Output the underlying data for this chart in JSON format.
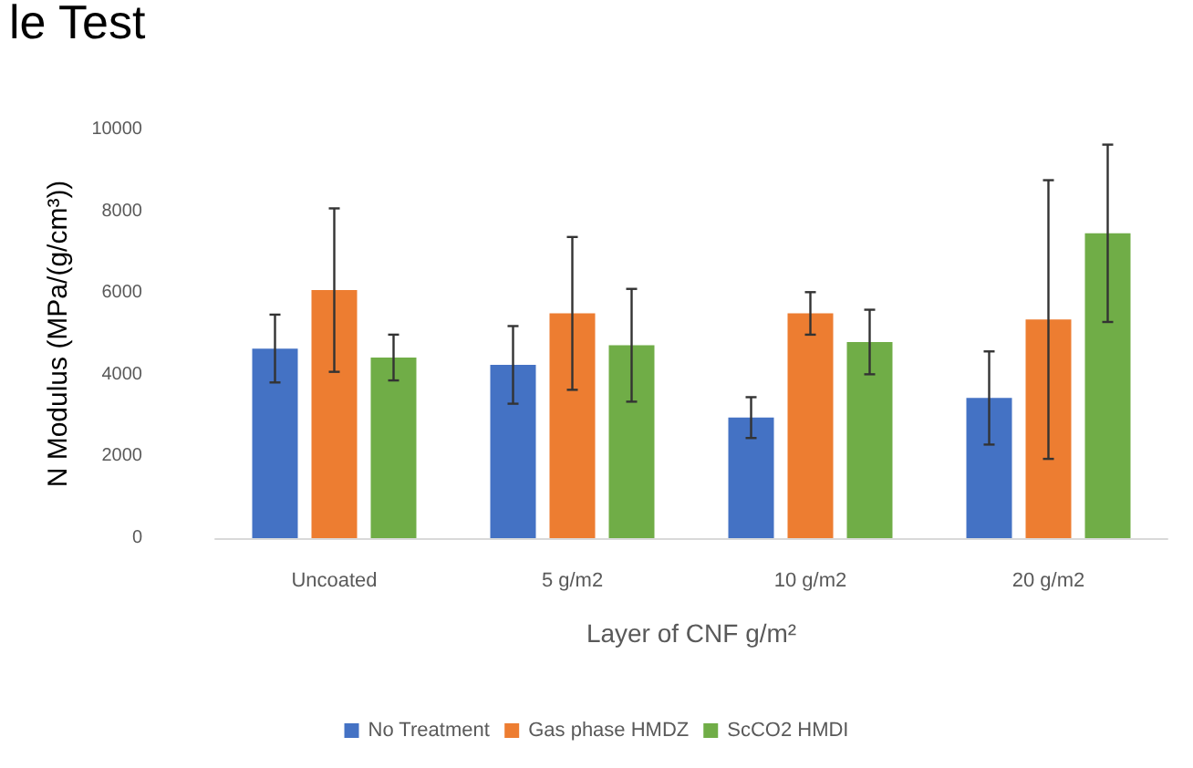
{
  "chart_data": {
    "type": "bar",
    "title": "le Test",
    "xlabel": "Layer of CNF g/m²",
    "ylabel": "N Modulus (MPa/(g/cm³))",
    "categories": [
      "Uncoated",
      "5 g/m2",
      "10 g/m2",
      "20 g/m2"
    ],
    "series": [
      {
        "name": "No Treatment",
        "color": "#4472c4",
        "values": [
          4640,
          4240,
          2950,
          3430
        ],
        "errors": [
          830,
          950,
          500,
          1140
        ]
      },
      {
        "name": "Gas phase HMDZ",
        "color": "#ed7d31",
        "values": [
          6070,
          5500,
          5500,
          5350
        ],
        "errors": [
          2000,
          1870,
          520,
          3410
        ]
      },
      {
        "name": "ScCO2 HMDI",
        "color": "#70ad47",
        "values": [
          4420,
          4720,
          4800,
          7460
        ],
        "errors": [
          560,
          1380,
          790,
          2170
        ]
      }
    ],
    "ylim": [
      0,
      10000
    ],
    "yticks": [
      0,
      2000,
      4000,
      6000,
      8000,
      10000
    ],
    "grid": false,
    "legend": "bottom"
  }
}
